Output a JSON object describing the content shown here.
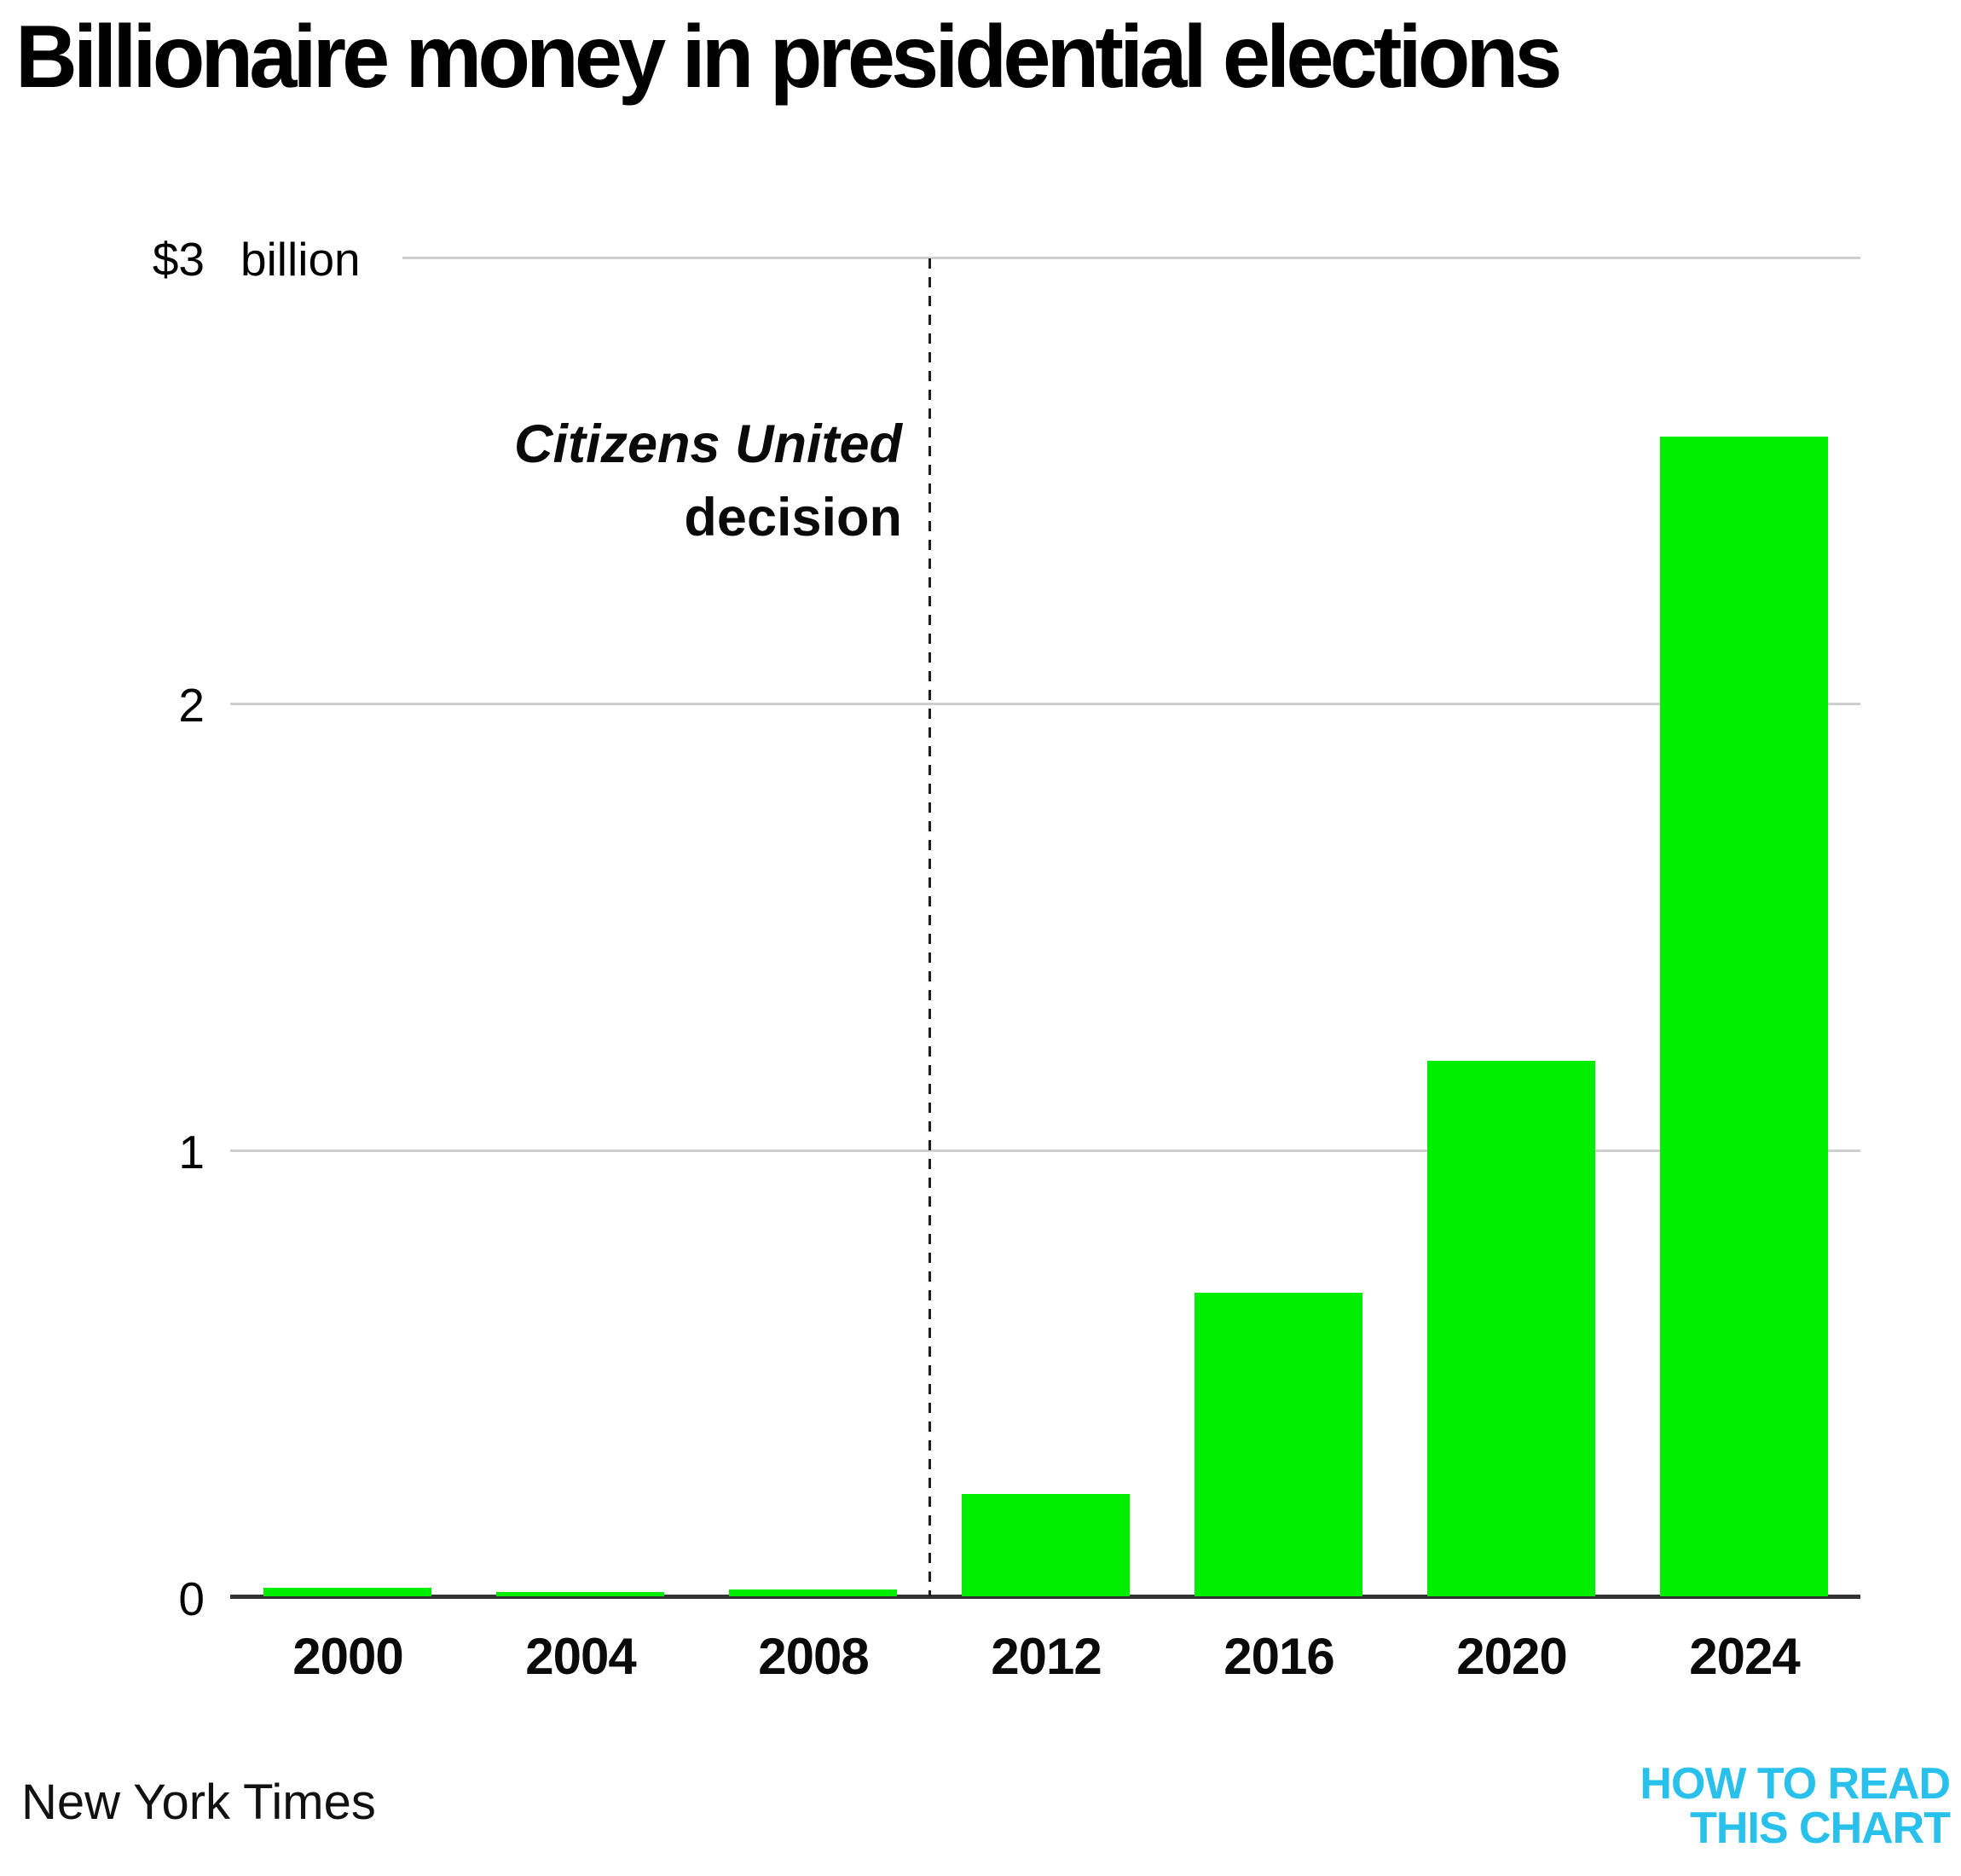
{
  "title": "Billionaire money in presidential elections",
  "source": "New York Times",
  "logo": {
    "line1": "HOW TO READ",
    "line2": "THIS CHART",
    "color": "#29C1EC"
  },
  "annotation": {
    "line1": "Citizens United",
    "line2": "decision"
  },
  "chart_data": {
    "type": "bar",
    "title": "Billionaire money in presidential elections",
    "categories": [
      "2000",
      "2004",
      "2008",
      "2012",
      "2016",
      "2020",
      "2024"
    ],
    "values": [
      0.02,
      0.01,
      0.015,
      0.23,
      0.68,
      1.2,
      2.6
    ],
    "unit": "billion dollars",
    "ylim": [
      0,
      3
    ],
    "yticks": [
      0,
      1,
      2,
      3
    ],
    "ytick_labels": [
      "0",
      "1",
      "2"
    ],
    "ytop_label": {
      "currency_value": "$3",
      "unit": "billion"
    },
    "grid": true,
    "legend": false,
    "bar_color": "#00EE00",
    "gridline_color": "#CFCFCF",
    "axis_color": "#333333",
    "event_line": {
      "label_line1": "Citizens United",
      "label_line2": "decision",
      "position_between": [
        "2008",
        "2012"
      ],
      "style": "dashed"
    },
    "source": "New York Times"
  }
}
